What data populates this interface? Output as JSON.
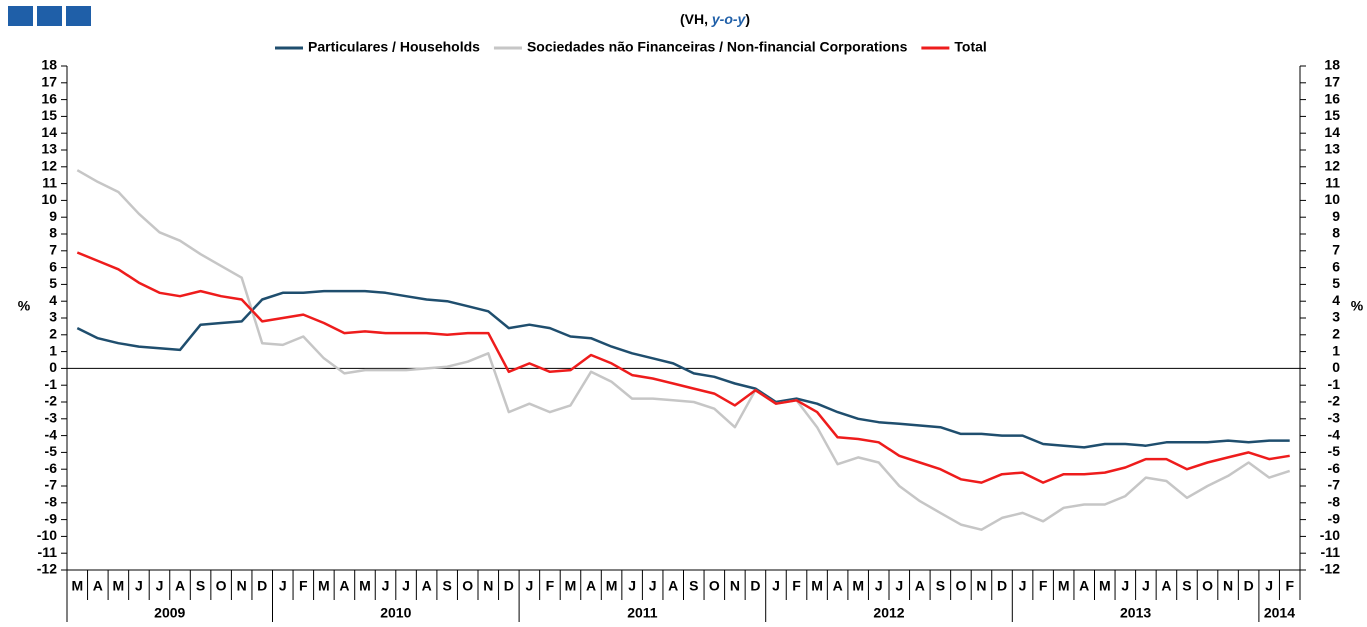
{
  "chart_data": {
    "type": "line",
    "title_parts": [
      "(VH, ",
      "y-o-y",
      ")"
    ],
    "y_label": "%",
    "y2_label": "%",
    "categories": [
      "M",
      "A",
      "M",
      "J",
      "J",
      "A",
      "S",
      "O",
      "N",
      "D",
      "J",
      "F",
      "M",
      "A",
      "M",
      "J",
      "J",
      "A",
      "S",
      "O",
      "N",
      "D",
      "J",
      "F",
      "M",
      "A",
      "M",
      "J",
      "J",
      "A",
      "S",
      "O",
      "N",
      "D",
      "J",
      "F",
      "M",
      "A",
      "M",
      "J",
      "J",
      "A",
      "S",
      "O",
      "N",
      "D",
      "J",
      "F",
      "M",
      "A",
      "M",
      "J",
      "J",
      "A",
      "S",
      "O",
      "N",
      "D",
      "J",
      "F"
    ],
    "years": [
      "2009",
      "2010",
      "2011",
      "2012",
      "2013",
      "2014"
    ],
    "series": [
      {
        "name": "Particulares / Households",
        "color": "#1f4e6e",
        "values": [
          2.4,
          1.8,
          1.5,
          1.3,
          1.2,
          1.1,
          2.6,
          2.7,
          2.8,
          4.1,
          4.5,
          4.5,
          4.6,
          4.6,
          4.6,
          4.5,
          4.3,
          4.1,
          4.0,
          3.7,
          3.4,
          2.4,
          2.6,
          2.4,
          1.9,
          1.8,
          1.3,
          0.9,
          0.6,
          0.3,
          -0.3,
          -0.5,
          -0.9,
          -1.2,
          -2.0,
          -1.8,
          -2.1,
          -2.6,
          -3.0,
          -3.2,
          -3.3,
          -3.4,
          -3.5,
          -3.9,
          -3.9,
          -4.0,
          -4.0,
          -4.5,
          -4.6,
          -4.7,
          -4.5,
          -4.5,
          -4.6,
          -4.4,
          -4.4,
          -4.4,
          -4.3,
          -4.4,
          -4.3,
          -4.3
        ]
      },
      {
        "name": "Sociedades não Financeiras / Non-financial Corporations",
        "color": "#c6c6c6",
        "values": [
          11.8,
          11.1,
          10.5,
          9.2,
          8.1,
          7.6,
          6.8,
          6.1,
          5.4,
          1.5,
          1.4,
          1.9,
          0.6,
          -0.3,
          -0.1,
          -0.1,
          -0.1,
          0.0,
          0.1,
          0.4,
          0.9,
          -2.6,
          -2.1,
          -2.6,
          -2.2,
          -0.2,
          -0.8,
          -1.8,
          -1.8,
          -1.9,
          -2.0,
          -2.4,
          -3.5,
          -1.3,
          -2.1,
          -1.9,
          -3.5,
          -5.7,
          -5.3,
          -5.6,
          -7.0,
          -7.9,
          -8.6,
          -9.3,
          -9.6,
          -8.9,
          -8.6,
          -9.1,
          -8.3,
          -8.1,
          -8.1,
          -7.6,
          -6.5,
          -6.7,
          -7.7,
          -7.0,
          -6.4,
          -5.6,
          -6.5,
          -6.1
        ]
      },
      {
        "name": "Total",
        "color": "#ee1c1c",
        "values": [
          6.9,
          6.4,
          5.9,
          5.1,
          4.5,
          4.3,
          4.6,
          4.3,
          4.1,
          2.8,
          3.0,
          3.2,
          2.7,
          2.1,
          2.2,
          2.1,
          2.1,
          2.1,
          2.0,
          2.1,
          2.1,
          -0.2,
          0.3,
          -0.2,
          -0.1,
          0.8,
          0.3,
          -0.4,
          -0.6,
          -0.9,
          -1.2,
          -1.5,
          -2.2,
          -1.3,
          -2.1,
          -1.9,
          -2.6,
          -4.1,
          -4.2,
          -4.4,
          -5.2,
          -5.6,
          -6.0,
          -6.6,
          -6.8,
          -6.3,
          -6.2,
          -6.8,
          -6.3,
          -6.3,
          -6.2,
          -5.9,
          -5.4,
          -5.4,
          -6.0,
          -5.6,
          -5.3,
          -5.0,
          -5.4,
          -5.2
        ]
      }
    ],
    "ylim": [
      -12,
      18
    ],
    "yticks": [
      -12,
      -11,
      -10,
      -9,
      -8,
      -7,
      -6,
      -5,
      -4,
      -3,
      -2,
      -1,
      0,
      1,
      2,
      3,
      4,
      5,
      6,
      7,
      8,
      9,
      10,
      11,
      12,
      13,
      14,
      15,
      16,
      17,
      18
    ],
    "y2lim": [
      -12,
      18
    ],
    "y2ticks": [
      -12,
      -11,
      -10,
      -9,
      -8,
      -7,
      -6,
      -5,
      -4,
      -3,
      -2,
      -1,
      0,
      1,
      2,
      3,
      4,
      5,
      6,
      7,
      8,
      9,
      10,
      11,
      12,
      13,
      14,
      15,
      16,
      17,
      18
    ]
  }
}
